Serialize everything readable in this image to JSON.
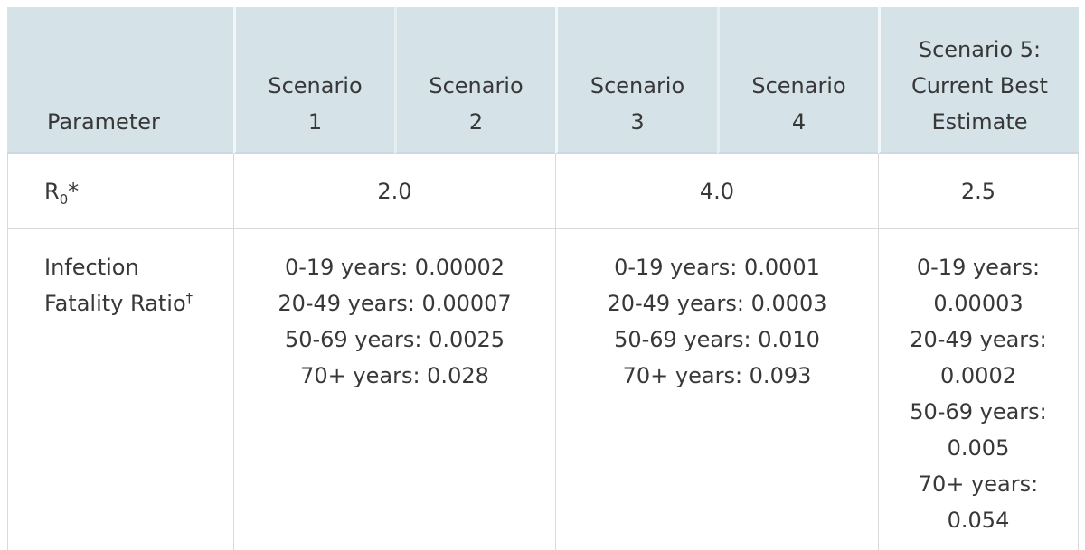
{
  "colors": {
    "header_bg": "#d5e3e8",
    "header_bottom": "#ccd9de",
    "header_divider": "#e7eef1",
    "header_divider_strong": "#f4f7f8",
    "border": "#d9d9d9",
    "text": "#383838",
    "page_bg": "#ffffff"
  },
  "table": {
    "columns": {
      "parameter_header": "Parameter",
      "scenario_headers": [
        "Scenario\n1",
        "Scenario\n2",
        "Scenario\n3",
        "Scenario\n4",
        "Scenario 5:\nCurrent Best\nEstimate"
      ]
    },
    "rows": {
      "r0": {
        "parameter": {
          "symbol": "R",
          "subscript": "0",
          "footnote_mark": "*"
        },
        "values": {
          "scenario_1_2": "2.0",
          "scenario_3_4": "4.0",
          "scenario_5": "2.5"
        }
      },
      "ifr": {
        "parameter": {
          "name": "Infection\nFatality Ratio",
          "footnote_mark": "†"
        },
        "values": {
          "scenario_1_2": [
            "0-19 years: 0.00002",
            "20-49 years: 0.00007",
            "50-69 years: 0.0025",
            "70+ years: 0.028"
          ],
          "scenario_3_4": [
            "0-19 years: 0.0001",
            "20-49 years: 0.0003",
            "50-69 years: 0.010",
            "70+ years: 0.093"
          ],
          "scenario_5": [
            "0-19 years: 0.00003",
            "20-49 years: 0.0002",
            "50-69 years: 0.005",
            "70+ years: 0.054"
          ]
        }
      }
    }
  }
}
